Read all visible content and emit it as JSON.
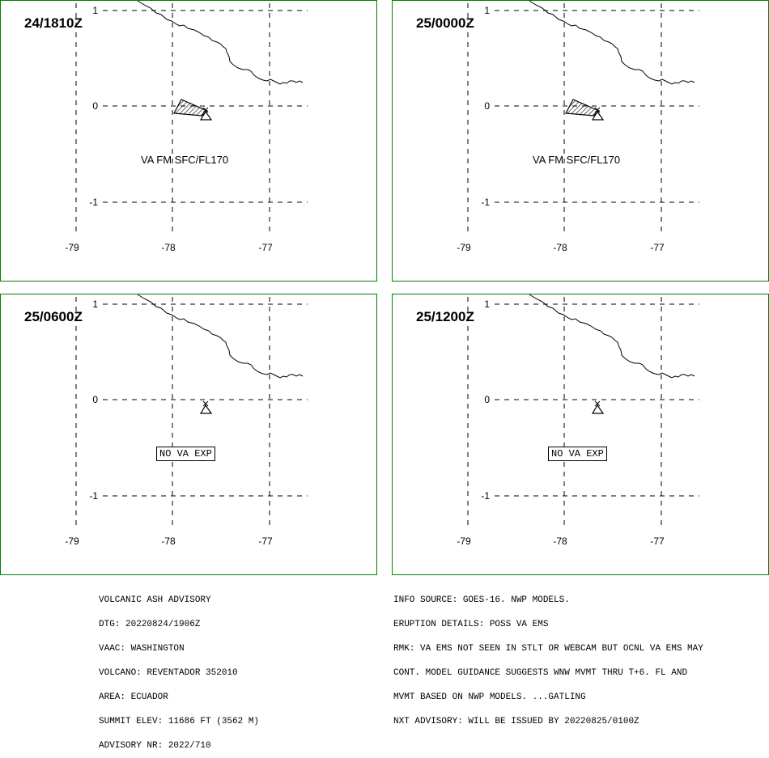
{
  "panels": [
    {
      "time": "24/1810Z",
      "label": "VA FM SFC/FL170",
      "label_style": "plain",
      "has_ash": true
    },
    {
      "time": "25/0000Z",
      "label": "VA FM SFC/FL170",
      "label_style": "plain",
      "has_ash": true
    },
    {
      "time": "25/0600Z",
      "label": "NO VA EXP",
      "label_style": "boxed",
      "has_ash": false
    },
    {
      "time": "25/1200Z",
      "label": "NO VA EXP",
      "label_style": "boxed",
      "has_ash": false
    }
  ],
  "axes": {
    "lat_ticks": [
      "1",
      "0",
      "-1"
    ],
    "lon_ticks": [
      "-79",
      "-78",
      "-77"
    ]
  },
  "advisory_left": [
    "VOLCANIC ASH ADVISORY",
    "DTG: 20220824/1906Z",
    "VAAC: WASHINGTON",
    "VOLCANO: REVENTADOR 352010",
    "AREA: ECUADOR",
    "SUMMIT ELEV: 11686 FT (3562 M)",
    "ADVISORY NR: 2022/710"
  ],
  "advisory_right": [
    "INFO SOURCE: GOES-16. NWP MODELS.",
    "ERUPTION DETAILS: POSS VA EMS",
    "RMK: VA EMS NOT SEEN IN STLT OR WEBCAM BUT OCNL VA EMS MAY",
    "CONT. MODEL GUIDANCE SUGGESTS WNW MVMT THRU T+6. FL AND",
    "MVMT BASED ON NWP MODELS. ...GATLING",
    "NXT ADVISORY: WILL BE ISSUED BY 20220825/0100Z"
  ],
  "colors": {
    "frame": "#008000",
    "lines": "#000000"
  },
  "icons": {
    "volcano": "volcano-triangle-icon",
    "ash": "ash-cloud-hatched-polygon"
  }
}
